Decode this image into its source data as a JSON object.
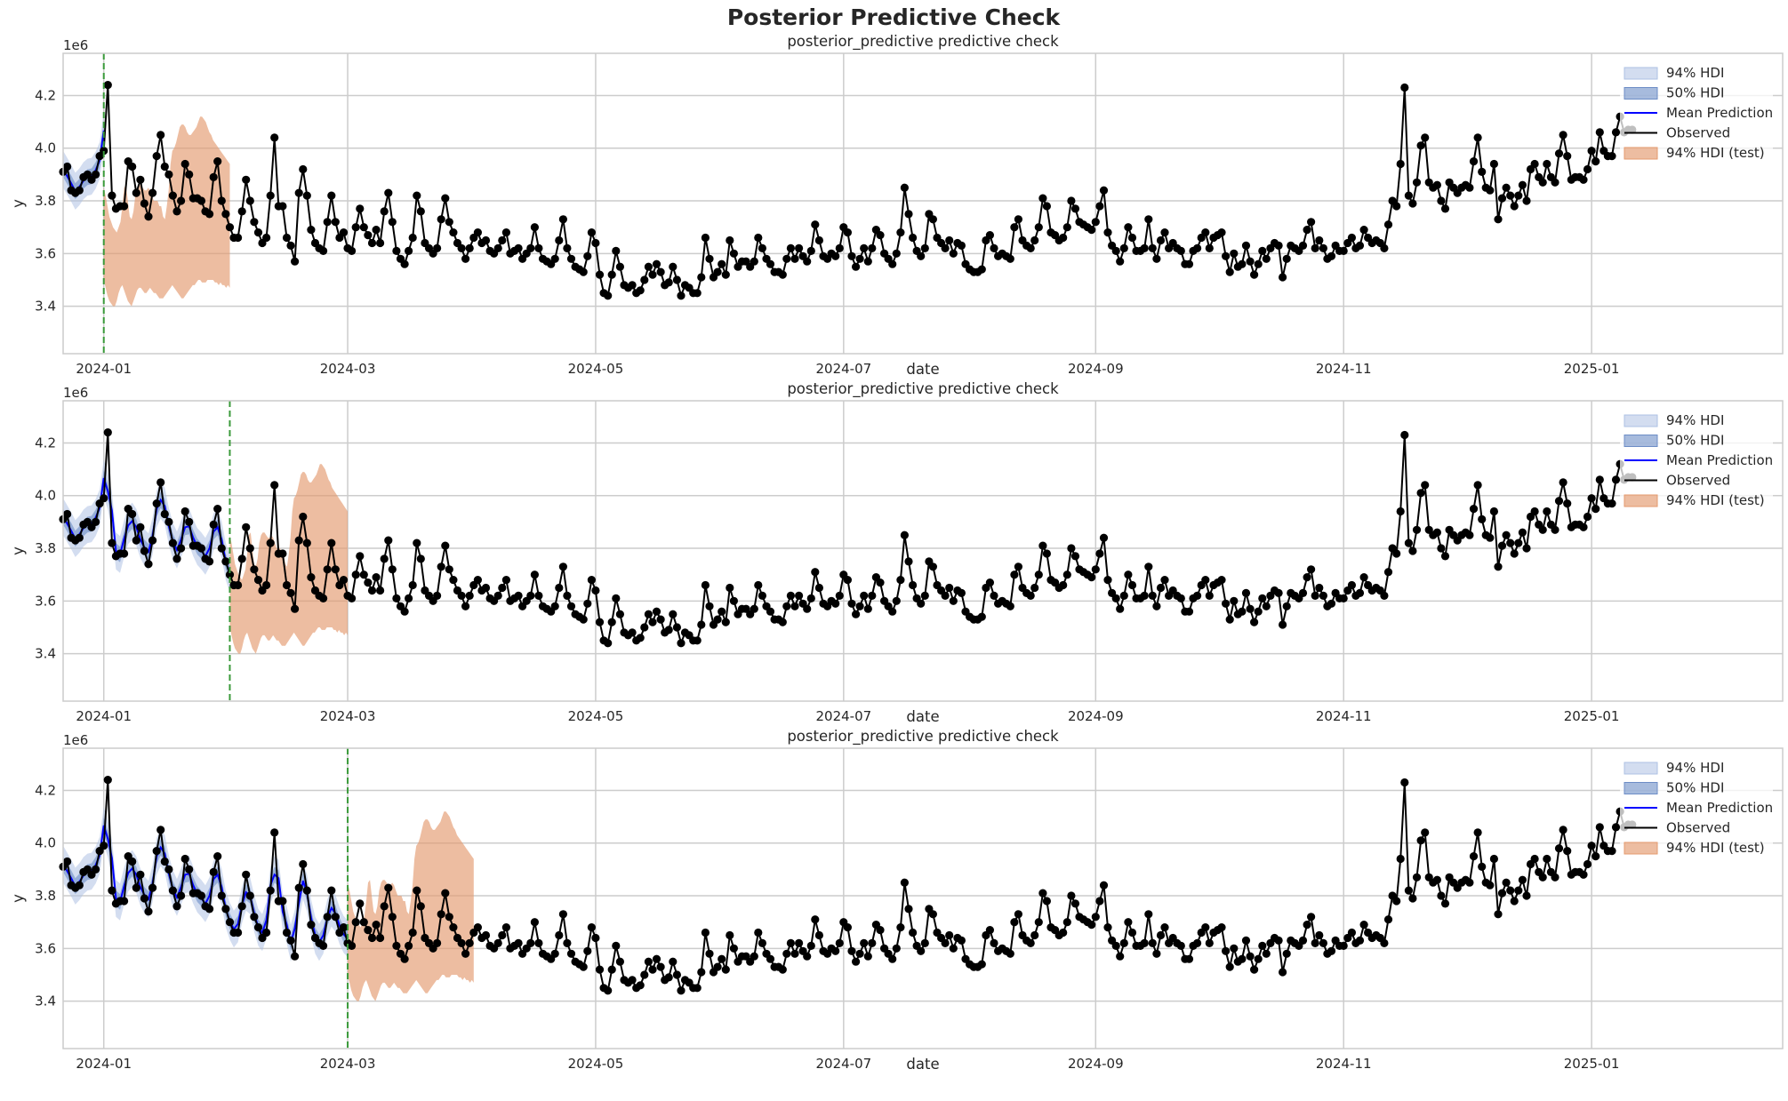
{
  "figure": {
    "suptitle": "Posterior Predictive Check"
  },
  "colors": {
    "observed": "#000000",
    "mean": "#0000ff",
    "hdi94": "#aec1e3",
    "hdi50": "#6d8dc6",
    "hdi_test": "#e49a6e",
    "cutoff": "#3a9a3a",
    "grid": "#cccccc",
    "spine": "#cccccc"
  },
  "legend": {
    "placement": "upper-right",
    "labels": [
      "94% HDI",
      "50% HDI",
      "Mean Prediction",
      "Observed",
      "94% HDI (test)"
    ]
  },
  "chart_data": {
    "type": "line",
    "panels": [
      {
        "title": "posterior_predictive predictive check",
        "xlabel": "date",
        "ylabel": "y",
        "y_scale_label": "1e6",
        "cutoff_date": "2024-01-01",
        "test_end_date": "2024-02-01"
      },
      {
        "title": "posterior_predictive predictive check",
        "xlabel": "date",
        "ylabel": "y",
        "y_scale_label": "1e6",
        "cutoff_date": "2024-02-01",
        "test_end_date": "2024-03-01"
      },
      {
        "title": "posterior_predictive predictive check",
        "xlabel": "date",
        "ylabel": "y",
        "y_scale_label": "1e6",
        "cutoff_date": "2024-03-01",
        "test_end_date": "2024-04-01"
      }
    ],
    "xlim": [
      "2023-12-22",
      "2025-02-17"
    ],
    "ylim": [
      3.22,
      4.36
    ],
    "x_tick_labels": [
      "2024-01",
      "2024-03",
      "2024-05",
      "2024-07",
      "2024-09",
      "2024-11",
      "2025-01"
    ],
    "x_tick_dates": [
      "2024-01-01",
      "2024-03-01",
      "2024-05-01",
      "2024-07-01",
      "2024-09-01",
      "2024-11-01",
      "2025-01-01"
    ],
    "y_tick_labels": [
      "3.4",
      "3.6",
      "3.8",
      "4.0",
      "4.2"
    ],
    "y_tick_values": [
      3.4,
      3.6,
      3.8,
      4.0,
      4.2
    ],
    "grid": true,
    "series": [
      {
        "name": "Observed",
        "x_start": "2023-12-22",
        "x_step_days": 1,
        "values": [
          3.91,
          3.93,
          3.84,
          3.83,
          3.84,
          3.89,
          3.9,
          3.88,
          3.9,
          3.97,
          3.99,
          4.24,
          3.82,
          3.77,
          3.78,
          3.78,
          3.95,
          3.93,
          3.83,
          3.88,
          3.79,
          3.74,
          3.83,
          3.97,
          4.05,
          3.93,
          3.9,
          3.82,
          3.76,
          3.8,
          3.94,
          3.9,
          3.81,
          3.81,
          3.8,
          3.76,
          3.75,
          3.89,
          3.95,
          3.8,
          3.75,
          3.7,
          3.66,
          3.66,
          3.76,
          3.88,
          3.8,
          3.72,
          3.68,
          3.64,
          3.66,
          3.82,
          4.04,
          3.78,
          3.78,
          3.66,
          3.63,
          3.57,
          3.83,
          3.92,
          3.82,
          3.69,
          3.64,
          3.62,
          3.61,
          3.72,
          3.82,
          3.72,
          3.66,
          3.68,
          3.62,
          3.61,
          3.7,
          3.77,
          3.7,
          3.67,
          3.64,
          3.69,
          3.64,
          3.76,
          3.83,
          3.72,
          3.61,
          3.58,
          3.56,
          3.61,
          3.66,
          3.82,
          3.76,
          3.64,
          3.62,
          3.6,
          3.62,
          3.73,
          3.81,
          3.72,
          3.68,
          3.64,
          3.62,
          3.58,
          3.62,
          3.66,
          3.68,
          3.64,
          3.65,
          3.61,
          3.6,
          3.62,
          3.65,
          3.68,
          3.6,
          3.61,
          3.62,
          3.58,
          3.6,
          3.62,
          3.7,
          3.62,
          3.58,
          3.57,
          3.56,
          3.58,
          3.65,
          3.73,
          3.62,
          3.58,
          3.55,
          3.54,
          3.53,
          3.59,
          3.68,
          3.64,
          3.52,
          3.45,
          3.44,
          3.52,
          3.61,
          3.55,
          3.48,
          3.47,
          3.48,
          3.45,
          3.46,
          3.5,
          3.55,
          3.52,
          3.56,
          3.53,
          3.48,
          3.49,
          3.55,
          3.5,
          3.44,
          3.48,
          3.47,
          3.45,
          3.45,
          3.51,
          3.66,
          3.58,
          3.51,
          3.53,
          3.56,
          3.52,
          3.65,
          3.6,
          3.55,
          3.57,
          3.57,
          3.55,
          3.57,
          3.66,
          3.62,
          3.58,
          3.56,
          3.53,
          3.53,
          3.52,
          3.58,
          3.62,
          3.58,
          3.62,
          3.59,
          3.57,
          3.61,
          3.71,
          3.65,
          3.59,
          3.58,
          3.6,
          3.59,
          3.62,
          3.7,
          3.68,
          3.59,
          3.55,
          3.58,
          3.62,
          3.57,
          3.62,
          3.69,
          3.67,
          3.6,
          3.58,
          3.56,
          3.6,
          3.68,
          3.85,
          3.75,
          3.66,
          3.61,
          3.59,
          3.62,
          3.75,
          3.73,
          3.66,
          3.64,
          3.62,
          3.65,
          3.6,
          3.64,
          3.63,
          3.56,
          3.54,
          3.53,
          3.53,
          3.54,
          3.65,
          3.67,
          3.62,
          3.59,
          3.6,
          3.59,
          3.58,
          3.7,
          3.73,
          3.65,
          3.63,
          3.62,
          3.65,
          3.7,
          3.81,
          3.78,
          3.68,
          3.67,
          3.65,
          3.66,
          3.7,
          3.8,
          3.77,
          3.72,
          3.71,
          3.7,
          3.69,
          3.72,
          3.78,
          3.84,
          3.68,
          3.63,
          3.61,
          3.57,
          3.62,
          3.7,
          3.66,
          3.61,
          3.61,
          3.62,
          3.73,
          3.62,
          3.58,
          3.65,
          3.68,
          3.62,
          3.64,
          3.62,
          3.61,
          3.56,
          3.56,
          3.61,
          3.62,
          3.66,
          3.68,
          3.62,
          3.66,
          3.67,
          3.68,
          3.59,
          3.53,
          3.6,
          3.55,
          3.56,
          3.63,
          3.57,
          3.52,
          3.56,
          3.61,
          3.58,
          3.62,
          3.64,
          3.63,
          3.51,
          3.58,
          3.63,
          3.62,
          3.61,
          3.63,
          3.69,
          3.72,
          3.62,
          3.65,
          3.62,
          3.58,
          3.59,
          3.63,
          3.61,
          3.61,
          3.64,
          3.66,
          3.62,
          3.63,
          3.69,
          3.66,
          3.64,
          3.65,
          3.64,
          3.62,
          3.71,
          3.8,
          3.78,
          3.94,
          4.23,
          3.82,
          3.79,
          3.87,
          4.01,
          4.04,
          3.87,
          3.85,
          3.86,
          3.8,
          3.77,
          3.87,
          3.85,
          3.83,
          3.85,
          3.86,
          3.85,
          3.95,
          4.04,
          3.91,
          3.85,
          3.84,
          3.94,
          3.73,
          3.81,
          3.85,
          3.82,
          3.78,
          3.82,
          3.86,
          3.8,
          3.92,
          3.94,
          3.89,
          3.87,
          3.94,
          3.89,
          3.87,
          3.98,
          4.05,
          3.97,
          3.88,
          3.89,
          3.89,
          3.88,
          3.92,
          3.99,
          3.95,
          4.06,
          3.99,
          3.97,
          3.97,
          4.06,
          4.12,
          4.06,
          4.07,
          4.07
        ]
      },
      {
        "name": "Mean Prediction"
      },
      {
        "name": "94% HDI"
      },
      {
        "name": "50% HDI"
      },
      {
        "name": "94% HDI (test)",
        "x_step_days": 2,
        "upper": [
          3.85,
          3.82,
          3.78,
          3.74,
          3.72,
          3.7,
          3.69,
          3.68,
          3.7,
          3.72,
          3.78,
          3.85,
          3.86,
          3.8,
          3.74,
          3.73,
          3.76,
          3.82,
          3.85,
          3.86,
          3.86,
          3.85,
          3.84,
          3.84,
          3.85,
          3.84,
          3.82,
          3.8,
          3.8,
          3.8,
          3.78,
          3.78,
          3.74,
          3.73,
          3.78,
          3.84,
          3.94,
          3.99,
          4.0,
          4.02,
          4.05,
          4.08,
          4.09,
          4.09,
          4.08,
          4.06,
          4.05,
          4.05,
          4.06,
          4.07,
          4.08,
          4.1,
          4.12,
          4.12,
          4.11,
          4.1,
          4.08,
          4.06,
          4.05,
          4.03,
          4.02,
          4.01,
          4.0,
          3.99,
          3.98,
          3.97,
          3.96,
          3.95,
          3.94
        ],
        "lower": [
          3.5,
          3.47,
          3.44,
          3.42,
          3.41,
          3.4,
          3.4,
          3.42,
          3.45,
          3.47,
          3.48,
          3.46,
          3.44,
          3.42,
          3.41,
          3.4,
          3.42,
          3.44,
          3.46,
          3.47,
          3.47,
          3.46,
          3.45,
          3.45,
          3.46,
          3.47,
          3.46,
          3.45,
          3.45,
          3.44,
          3.43,
          3.43,
          3.43,
          3.44,
          3.45,
          3.46,
          3.47,
          3.48,
          3.47,
          3.46,
          3.45,
          3.44,
          3.43,
          3.43,
          3.44,
          3.45,
          3.46,
          3.47,
          3.48,
          3.48,
          3.49,
          3.5,
          3.5,
          3.49,
          3.49,
          3.49,
          3.5,
          3.5,
          3.5,
          3.5,
          3.49,
          3.49,
          3.48,
          3.49,
          3.48,
          3.48,
          3.47,
          3.48,
          3.47
        ]
      }
    ]
  }
}
